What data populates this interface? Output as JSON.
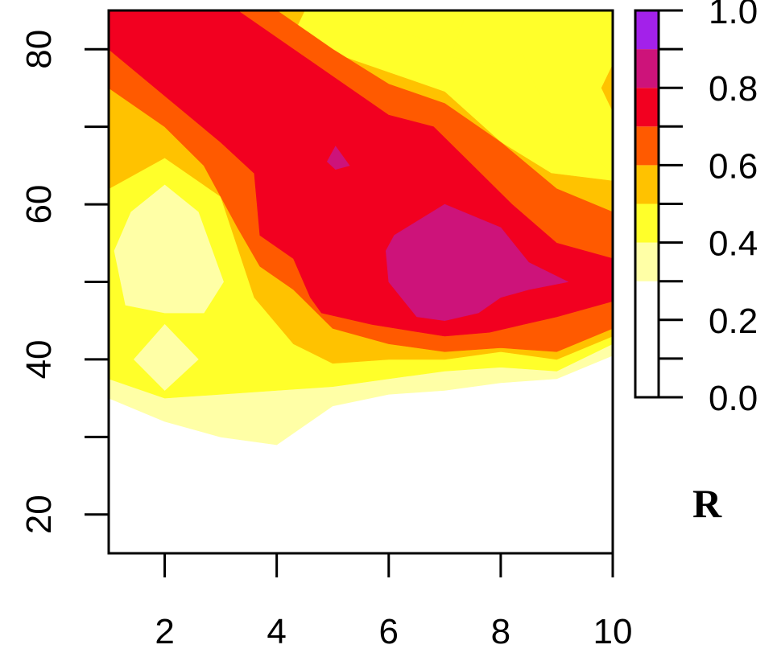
{
  "chart_data": {
    "type": "heatmap",
    "title": "",
    "xlabel": "",
    "ylabel": "",
    "xlim": [
      1,
      10
    ],
    "ylim": [
      15,
      85
    ],
    "x_ticks": [
      "2",
      "4",
      "6",
      "8",
      "10"
    ],
    "y_ticks": [
      "20",
      "40",
      "60",
      "80"
    ],
    "colorbar": {
      "title": "R",
      "ticks": [
        "0.0",
        "0.2",
        "0.4",
        "0.6",
        "0.8",
        "1.0"
      ],
      "range": [
        0,
        1
      ],
      "levels": [
        {
          "from": 0.0,
          "to": 0.3,
          "color": "#FFFFFF"
        },
        {
          "from": 0.3,
          "to": 0.4,
          "color": "#FFFFA6"
        },
        {
          "from": 0.4,
          "to": 0.5,
          "color": "#FFFF2A"
        },
        {
          "from": 0.5,
          "to": 0.6,
          "color": "#FFC200"
        },
        {
          "from": 0.6,
          "to": 0.7,
          "color": "#FF5A00"
        },
        {
          "from": 0.7,
          "to": 0.8,
          "color": "#F20020"
        },
        {
          "from": 0.8,
          "to": 0.9,
          "color": "#CD137A"
        },
        {
          "from": 0.9,
          "to": 1.0,
          "color": "#A321EA"
        }
      ]
    },
    "regions": [
      {
        "level": 0.3,
        "points": [
          [
            1,
            35
          ],
          [
            2,
            32
          ],
          [
            3,
            30
          ],
          [
            4,
            29
          ],
          [
            5,
            34
          ],
          [
            6,
            35.5
          ],
          [
            7,
            36
          ],
          [
            8,
            37
          ],
          [
            9,
            37.5
          ],
          [
            10,
            40.5
          ],
          [
            10,
            85
          ],
          [
            1,
            85
          ]
        ]
      },
      {
        "level": 0.4,
        "points": [
          [
            1,
            37.5
          ],
          [
            2,
            35
          ],
          [
            3,
            35.5
          ],
          [
            4,
            36
          ],
          [
            5,
            36.5
          ],
          [
            6,
            37.5
          ],
          [
            7,
            38.5
          ],
          [
            8,
            39
          ],
          [
            9,
            38.5
          ],
          [
            10,
            42
          ],
          [
            10,
            85
          ],
          [
            1,
            85
          ]
        ]
      },
      {
        "level": 0.3,
        "points": [
          [
            1.1,
            54
          ],
          [
            1.4,
            59
          ],
          [
            2,
            62.5
          ],
          [
            2.6,
            59
          ],
          [
            3.05,
            50
          ],
          [
            2.7,
            46
          ],
          [
            2,
            46
          ],
          [
            1.3,
            47
          ]
        ]
      },
      {
        "level": 0.3,
        "points": [
          [
            1.45,
            40
          ],
          [
            2,
            44.5
          ],
          [
            2.6,
            40
          ],
          [
            2,
            36
          ]
        ]
      },
      {
        "level": 0.5,
        "points": [
          [
            1,
            62
          ],
          [
            2,
            66
          ],
          [
            3,
            61
          ],
          [
            3.6,
            48
          ],
          [
            4.3,
            42
          ],
          [
            5,
            39.5
          ],
          [
            6,
            40
          ],
          [
            7,
            40
          ],
          [
            8,
            41
          ],
          [
            9,
            40
          ],
          [
            10,
            43
          ],
          [
            10,
            63
          ],
          [
            8.9,
            64
          ],
          [
            8,
            68
          ],
          [
            7,
            74.5
          ],
          [
            6,
            77
          ],
          [
            5,
            79.5
          ],
          [
            4.3,
            82
          ],
          [
            4.5,
            85
          ],
          [
            1,
            85
          ]
        ]
      },
      {
        "level": 0.4,
        "points": [
          [
            7.4,
            85
          ],
          [
            7.1,
            79
          ],
          [
            8,
            78
          ],
          [
            8.4,
            79.5
          ],
          [
            8.5,
            77
          ],
          [
            9,
            70
          ],
          [
            10,
            64
          ],
          [
            10,
            85
          ]
        ]
      },
      {
        "level": 0.4,
        "points": [
          [
            5.4,
            85
          ],
          [
            5.8,
            83
          ],
          [
            6.8,
            81
          ],
          [
            7.3,
            83
          ],
          [
            7.4,
            85
          ]
        ]
      },
      {
        "level": 0.5,
        "points": [
          [
            9.8,
            75
          ],
          [
            10,
            72
          ],
          [
            10,
            78
          ]
        ]
      },
      {
        "level": 0.6,
        "points": [
          [
            1,
            75
          ],
          [
            2,
            70
          ],
          [
            2.7,
            65
          ],
          [
            3.3,
            57
          ],
          [
            3.7,
            52
          ],
          [
            4.3,
            49
          ],
          [
            5,
            44
          ],
          [
            6,
            42
          ],
          [
            7,
            41
          ],
          [
            8,
            41.5
          ],
          [
            9,
            41
          ],
          [
            10,
            44
          ],
          [
            10,
            59
          ],
          [
            9,
            62
          ],
          [
            8,
            68
          ],
          [
            7,
            73
          ],
          [
            6,
            75.5
          ],
          [
            5,
            80
          ],
          [
            4,
            85
          ],
          [
            1,
            85
          ]
        ]
      },
      {
        "level": 0.7,
        "points": [
          [
            1,
            80
          ],
          [
            2,
            74
          ],
          [
            3,
            68
          ],
          [
            3.6,
            64
          ],
          [
            3.7,
            56
          ],
          [
            4.3,
            53
          ],
          [
            4.6,
            48
          ],
          [
            4.8,
            46
          ],
          [
            5.7,
            44.5
          ],
          [
            7,
            43
          ],
          [
            7.8,
            43.5
          ],
          [
            8.4,
            44.5
          ],
          [
            9,
            45.5
          ],
          [
            10,
            47.5
          ],
          [
            10,
            53
          ],
          [
            9,
            55
          ],
          [
            8.2,
            60
          ],
          [
            7.5,
            65
          ],
          [
            6.8,
            70
          ],
          [
            6,
            71.5
          ],
          [
            5,
            76.5
          ],
          [
            4.3,
            80
          ],
          [
            3.3,
            85
          ],
          [
            1,
            85
          ]
        ]
      },
      {
        "level": 0.8,
        "points": [
          [
            4.9,
            65.5
          ],
          [
            5.05,
            67.5
          ],
          [
            5.3,
            65
          ],
          [
            5.05,
            64.5
          ]
        ]
      },
      {
        "level": 0.8,
        "points": [
          [
            5.95,
            54
          ],
          [
            6.1,
            56
          ],
          [
            7,
            60
          ],
          [
            8,
            57
          ],
          [
            8.5,
            52.5
          ],
          [
            9.2,
            50
          ],
          [
            8.5,
            49
          ],
          [
            8,
            48
          ],
          [
            7.6,
            46
          ],
          [
            7,
            45
          ],
          [
            6.5,
            45.5
          ],
          [
            6,
            50
          ]
        ]
      }
    ]
  }
}
